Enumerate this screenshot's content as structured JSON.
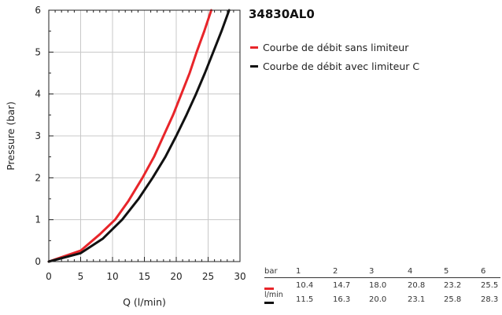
{
  "chart_data": {
    "type": "line",
    "title": "34830AL0",
    "xlabel": "Q (l/min)",
    "ylabel": "Pressure (bar)",
    "xlim": [
      0,
      30
    ],
    "ylim": [
      0,
      6
    ],
    "x_ticks": [
      0,
      5,
      10,
      15,
      20,
      25,
      30
    ],
    "y_ticks": [
      0,
      1,
      2,
      3,
      4,
      5,
      6
    ],
    "grid": true,
    "legend_position": "right",
    "series": [
      {
        "name": "Courbe de débit sans limiteur",
        "color": "#e8252a",
        "x": [
          0,
          5,
          8,
          10.4,
          12.5,
          14.7,
          16.5,
          18.0,
          19.5,
          20.8,
          22.1,
          23.2,
          24.4,
          25.5
        ],
        "y": [
          0,
          0.26,
          0.65,
          1,
          1.45,
          2,
          2.5,
          3,
          3.5,
          4,
          4.5,
          5,
          5.5,
          6
        ]
      },
      {
        "name": "Courbe de débit avec limiteur C",
        "color": "#111111",
        "x": [
          0,
          5,
          8.5,
          11.5,
          14.1,
          16.3,
          18.3,
          20.0,
          21.6,
          23.1,
          24.5,
          25.8,
          27.1,
          28.3
        ],
        "y": [
          0,
          0.2,
          0.55,
          1,
          1.5,
          2,
          2.5,
          3,
          3.5,
          4,
          4.5,
          5,
          5.5,
          6
        ]
      }
    ]
  },
  "table": {
    "header_label": "bar",
    "unit_label": "l/min",
    "bars": [
      "1",
      "2",
      "3",
      "4",
      "5",
      "6"
    ],
    "rows": [
      {
        "color": "#e8252a",
        "values": [
          "10.4",
          "14.7",
          "18.0",
          "20.8",
          "23.2",
          "25.5"
        ]
      },
      {
        "color": "#111111",
        "values": [
          "11.5",
          "16.3",
          "20.0",
          "23.1",
          "25.8",
          "28.3"
        ]
      }
    ]
  }
}
